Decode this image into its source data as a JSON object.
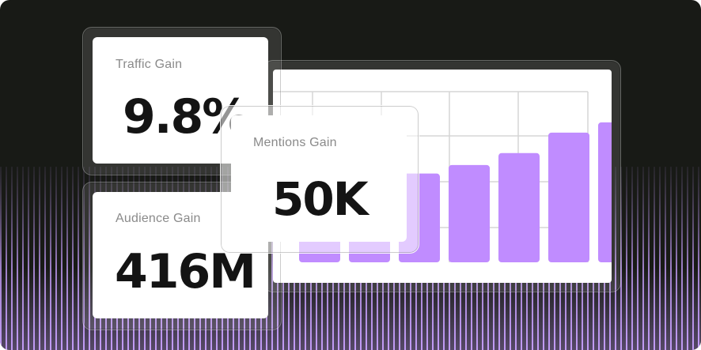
{
  "stats": {
    "traffic": {
      "label": "Traffic Gain",
      "value": "9.8%"
    },
    "mentions": {
      "label": "Mentions Gain",
      "value": "50K"
    },
    "audience": {
      "label": "Audience Gain",
      "value": "416M"
    }
  },
  "chart_data": {
    "type": "bar",
    "values": [
      52,
      52,
      52,
      57,
      64,
      76,
      82
    ],
    "ylim": [
      0,
      100
    ],
    "grid": true,
    "bar_color": "#c08cff",
    "grid_color": "#d6d6d6"
  },
  "colors": {
    "background": "#181a16",
    "stripe_accent": "#c9a1ff",
    "card": "#ffffff",
    "label_text": "#8a8a8a",
    "value_text": "#141414"
  }
}
